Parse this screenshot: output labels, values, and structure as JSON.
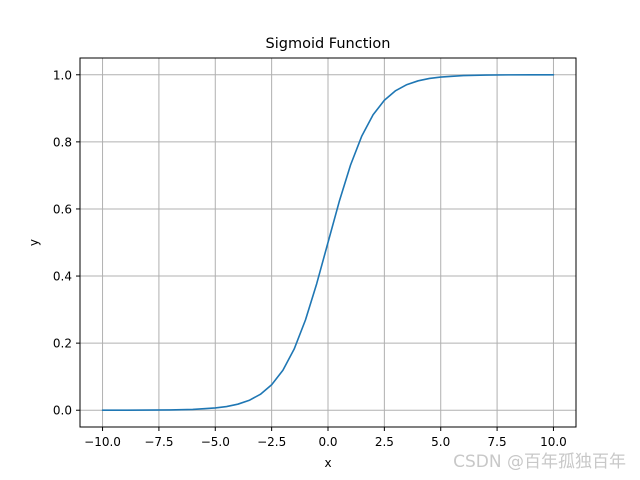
{
  "chart_data": {
    "type": "line",
    "title": "Sigmoid Function",
    "xlabel": "x",
    "ylabel": "y",
    "xlim": [
      -11.0,
      11.0
    ],
    "ylim": [
      -0.05,
      1.05
    ],
    "xticks": [
      -10.0,
      -7.5,
      -5.0,
      -2.5,
      0.0,
      2.5,
      5.0,
      7.5,
      10.0
    ],
    "xtick_labels": [
      "−10.0",
      "−7.5",
      "−5.0",
      "−2.5",
      "0.0",
      "2.5",
      "5.0",
      "7.5",
      "10.0"
    ],
    "yticks": [
      0.0,
      0.2,
      0.4,
      0.6,
      0.8,
      1.0
    ],
    "ytick_labels": [
      "0.0",
      "0.2",
      "0.4",
      "0.6",
      "0.8",
      "1.0"
    ],
    "grid": true,
    "legend": "none",
    "series": [
      {
        "color": "#1f77b4",
        "x": [
          -10,
          -9,
          -8,
          -7,
          -6,
          -5,
          -4.5,
          -4,
          -3.5,
          -3,
          -2.5,
          -2,
          -1.5,
          -1,
          -0.5,
          0,
          0.5,
          1,
          1.5,
          2,
          2.5,
          3,
          3.5,
          4,
          4.5,
          5,
          6,
          7,
          8,
          9,
          10
        ],
        "y": [
          4.54e-05,
          0.000123,
          0.000335,
          0.000911,
          0.00247,
          0.00669,
          0.011,
          0.018,
          0.0293,
          0.0474,
          0.0759,
          0.1192,
          0.1824,
          0.2689,
          0.3775,
          0.5,
          0.6225,
          0.7311,
          0.8176,
          0.8808,
          0.9241,
          0.9526,
          0.9707,
          0.982,
          0.989,
          0.9933,
          0.9975,
          0.9991,
          0.9997,
          0.9999,
          1.0
        ]
      }
    ]
  },
  "watermark": "CSDN @百年孤独百年"
}
